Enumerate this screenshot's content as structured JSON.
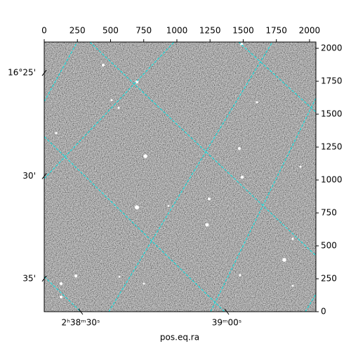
{
  "chart_data": {
    "type": "image",
    "xlabel": "pos.eq.ra",
    "xlim": [
      0,
      2048
    ],
    "ylim": [
      0,
      2048
    ],
    "xticks": [
      0,
      250,
      500,
      750,
      1000,
      1250,
      1500,
      1750,
      2000
    ],
    "yticks": [
      0,
      250,
      500,
      750,
      1000,
      1250,
      1500,
      1750,
      2000
    ],
    "wcs_x_ticks": [
      {
        "value": 275,
        "label": "2ʰ38ᵐ30ˢ"
      },
      {
        "value": 1376,
        "label": "39ᵐ00ˢ"
      }
    ],
    "wcs_y_ticks": [
      {
        "value": 1813,
        "label": "16°25'"
      },
      {
        "value": 1029,
        "label": "30'"
      },
      {
        "value": 251,
        "label": "35'"
      }
    ],
    "grid_color": "#00e5e5"
  }
}
